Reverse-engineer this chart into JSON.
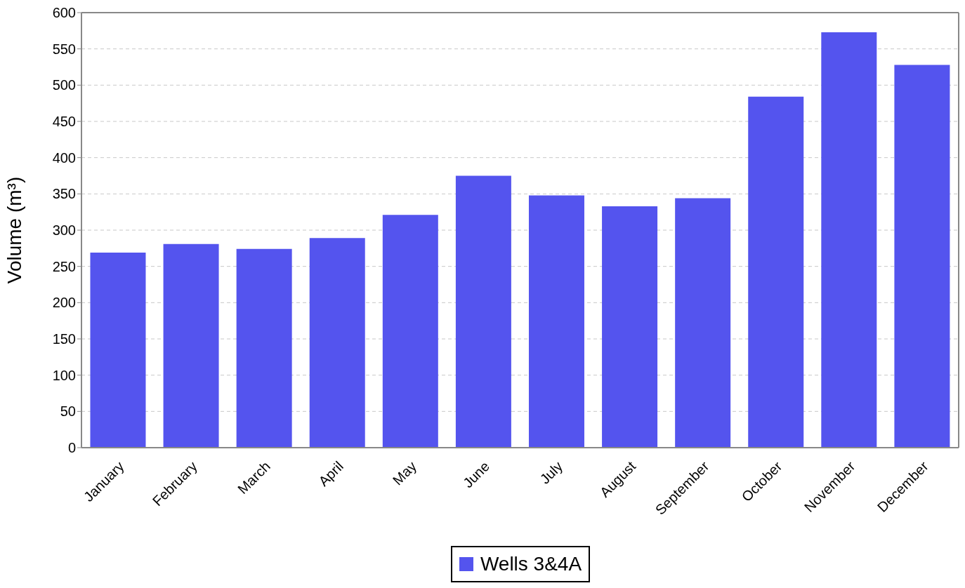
{
  "chart_data": {
    "type": "bar",
    "ylabel": "Volume (m³)",
    "categories": [
      "January",
      "February",
      "March",
      "April",
      "May",
      "June",
      "July",
      "August",
      "September",
      "October",
      "November",
      "December"
    ],
    "series": [
      {
        "name": "Wells 3&4A",
        "color": "#5454ee",
        "values": [
          269,
          281,
          274,
          289,
          321,
          375,
          348,
          333,
          344,
          484,
          573,
          528
        ]
      }
    ],
    "ylim": [
      0,
      600
    ],
    "yticks": [
      0,
      50,
      100,
      150,
      200,
      250,
      300,
      350,
      400,
      450,
      500,
      550,
      600
    ],
    "grid": "y",
    "legend": "bottom"
  }
}
